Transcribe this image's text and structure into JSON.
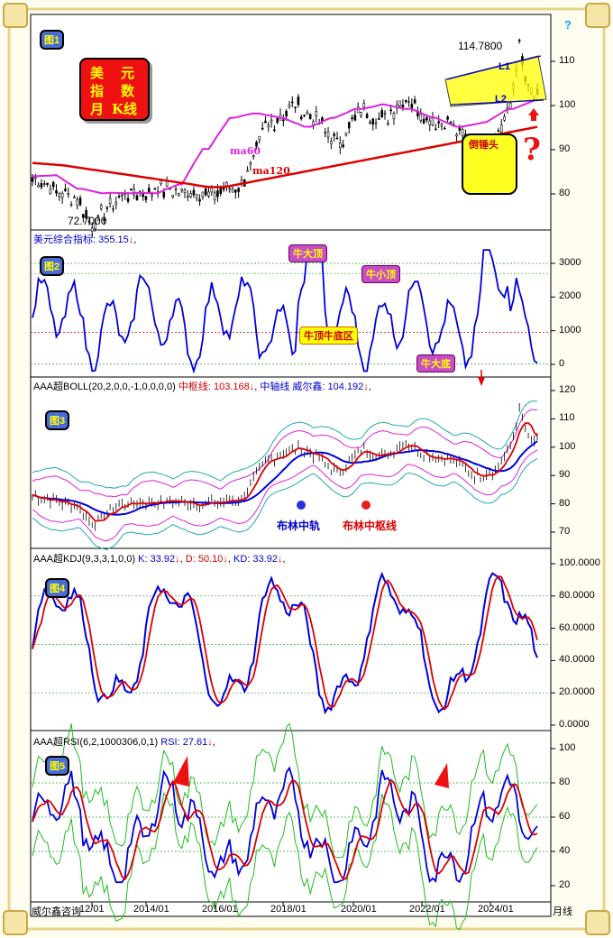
{
  "colors": {
    "up": "#000000",
    "blue": "#0000dd",
    "red": "#dd0000",
    "magenta": "#dd22dd",
    "cyan": "#22aaaa",
    "green": "#22bb22",
    "grid_green": "#22aa22",
    "grid_red": "#dd0000"
  },
  "corner_mark": "?",
  "xaxis": {
    "ticks": [
      "12/01",
      "2014/01",
      "2016/01",
      "2018/01",
      "2020/01",
      "2022/01",
      "2024/01"
    ],
    "left_text": "威尔鑫咨询",
    "right_text": "月线"
  },
  "panel1": {
    "badge": "图1",
    "title_chars": [
      "美",
      "元",
      "指",
      "数",
      "月",
      "K线"
    ],
    "high_label": "114.7800",
    "low_label": "72.7000",
    "ma60_label": "ma60",
    "ma120_label": "ma120",
    "l1_label": "L1",
    "l2_label": "L2",
    "hammer_label": "倒锤头",
    "question_mark": "?",
    "yticks": [
      "110",
      "100",
      "90",
      "80"
    ]
  },
  "panel2": {
    "badge": "图2",
    "name": "美元综合指标:",
    "value": "355.15",
    "tag_bull_top": "牛大顶",
    "tag_bull_small_top": "牛小顶",
    "tag_zone": "牛顶牛底区",
    "tag_bull_bottom": "牛大底",
    "yticks": [
      "3000",
      "2000",
      "1000",
      "0"
    ]
  },
  "panel3": {
    "badge": "图3",
    "name": "AAA超BOLL(20,2,0,0,-1,0,0,0,0)",
    "mid_label": "中枢线:",
    "mid_value": "103.168",
    "axis_label": "中轴线 威尔鑫:",
    "axis_value": "104.192",
    "legend_axis": "布林中轨",
    "legend_mid": "布林中枢线",
    "yticks": [
      "120",
      "110",
      "100",
      "90",
      "80",
      "70"
    ]
  },
  "panel4": {
    "badge": "图4",
    "name": "AAA超KDJ(9,3,3,1,0,0)",
    "k_label": "K:",
    "k_value": "33.92",
    "d_label": "D:",
    "d_value": "50.10",
    "kd_label": "KD:",
    "kd_value": "33.92",
    "yticks": [
      "100.0000",
      "80.0000",
      "60.0000",
      "40.0000",
      "20.0000",
      "0.0000"
    ]
  },
  "panel5": {
    "badge": "图5",
    "name": "AAA超RSI(6,2,1000306,0,1)",
    "rsi_label": "RSI:",
    "rsi_value": "27.61",
    "yticks": [
      "100",
      "80",
      "60",
      "40",
      "20"
    ]
  },
  "chart_data": [
    {
      "type": "candlestick",
      "title": "美元指数月K线",
      "ylim": [
        70,
        120
      ],
      "series": [
        {
          "name": "ma60",
          "values": []
        },
        {
          "name": "ma120",
          "values": []
        }
      ],
      "annotations": [
        "114.7800",
        "72.7000",
        "L1",
        "L2",
        "倒锤头"
      ]
    },
    {
      "type": "line",
      "ylim": [
        -300,
        3500
      ],
      "series": [
        {
          "name": "美元综合指标",
          "values": [
            355.15
          ]
        }
      ]
    },
    {
      "type": "line",
      "ylim": [
        65,
        125
      ],
      "series": [
        {
          "name": "中枢线",
          "values": [
            103.168
          ]
        },
        {
          "name": "中轴线",
          "values": [
            104.192
          ]
        }
      ]
    },
    {
      "type": "line",
      "ylim": [
        0,
        100
      ],
      "series": [
        {
          "name": "K",
          "values": [
            33.92
          ]
        },
        {
          "name": "D",
          "values": [
            50.1
          ]
        },
        {
          "name": "KD",
          "values": [
            33.92
          ]
        }
      ]
    },
    {
      "type": "line",
      "ylim": [
        15,
        105
      ],
      "series": [
        {
          "name": "RSI",
          "values": [
            27.61
          ]
        }
      ]
    }
  ]
}
